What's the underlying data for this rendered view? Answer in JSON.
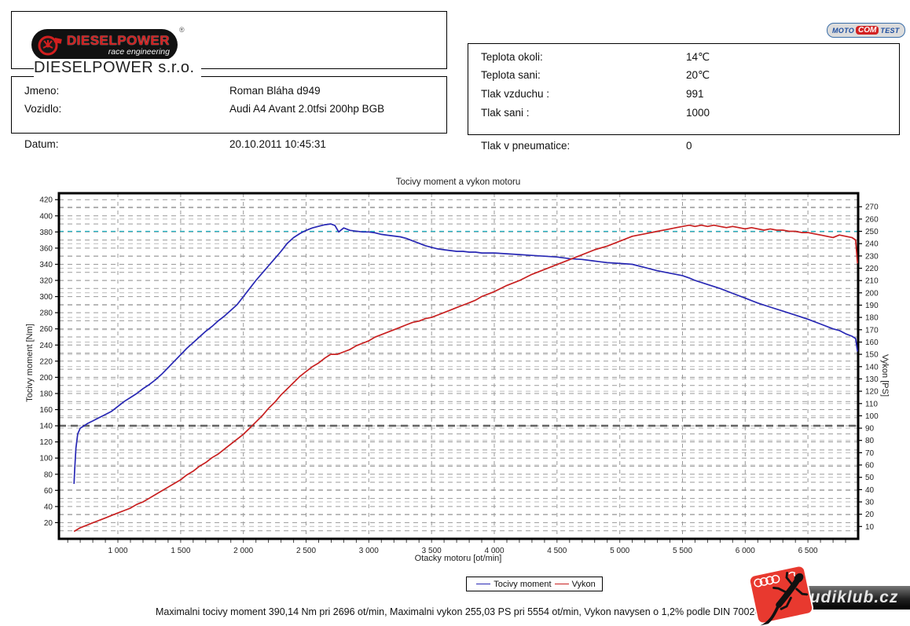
{
  "header": {
    "logo": {
      "brand": "DIESELPOWER",
      "sub": "race engineering",
      "registered": "®"
    },
    "company": "DIESELPOWER s.r.o.",
    "motocomtest": {
      "moto": "MOTO",
      "com": "COM",
      "test": "TEST"
    },
    "info_left": [
      {
        "label": "Jmeno:",
        "value": "Roman Bláha d949"
      },
      {
        "label": "Vozidlo:",
        "value": "Audi A4 Avant 2.0tfsi 200hp BGB"
      },
      {
        "label": "Datum:",
        "value": "20.10.2011 10:45:31"
      }
    ],
    "info_right": [
      {
        "label": "Teplota okoli:",
        "value": "14℃"
      },
      {
        "label": "Teplota sani:",
        "value": "20℃"
      },
      {
        "label": "Tlak vzduchu :",
        "value": "991"
      },
      {
        "label": "Tlak sani :",
        "value": "1000"
      },
      {
        "label": "Tlak v pneumatice:",
        "value": "0"
      }
    ]
  },
  "chart_data": {
    "type": "line",
    "title": "Tocivy moment a vykon motoru",
    "xlabel": "Otacky motoru [ot/min]",
    "ylabel_left": "Tocivy moment [Nm]",
    "ylabel_right": "Vykon [PS]",
    "xlim": [
      530,
      6900
    ],
    "ylim_left": [
      0,
      428
    ],
    "ylim_right": [
      0,
      281
    ],
    "x_ticks": [
      1000,
      1500,
      2000,
      2500,
      3000,
      3500,
      4000,
      4500,
      5000,
      5500,
      6000,
      6500
    ],
    "x_tick_labels": [
      "1 000",
      "1 500",
      "2 000",
      "2 500",
      "3 000",
      "3 500",
      "4 000",
      "4 500",
      "5 000",
      "5 500",
      "6 000",
      "6 500"
    ],
    "x_minor_step": 100,
    "y_left_ticks_step": 20,
    "y_left_grid_step": 10,
    "y_right_ticks_step": 10,
    "grid": true,
    "legend_position": "bottom-center",
    "highlight_lines": [
      {
        "axis": "left",
        "value": 140,
        "color": "#666666",
        "style": "bold-dashed"
      },
      {
        "axis": "right",
        "value": 250,
        "color": "#25b8c8",
        "style": "dashed"
      }
    ],
    "maxima": {
      "torque": "390,14 Nm pri 2696 ot/min",
      "power": "255,03 PS pri 5554 ot/min"
    },
    "series": [
      {
        "name": "Tocivy moment",
        "axis": "left",
        "unit": "Nm",
        "color": "#2828b4",
        "points": [
          [
            650,
            68
          ],
          [
            655,
            85
          ],
          [
            665,
            112
          ],
          [
            680,
            130
          ],
          [
            700,
            137
          ],
          [
            730,
            140
          ],
          [
            760,
            143
          ],
          [
            800,
            146
          ],
          [
            850,
            150
          ],
          [
            900,
            154
          ],
          [
            950,
            158
          ],
          [
            1000,
            164
          ],
          [
            1050,
            170
          ],
          [
            1100,
            175
          ],
          [
            1150,
            180
          ],
          [
            1200,
            186
          ],
          [
            1250,
            191
          ],
          [
            1300,
            197
          ],
          [
            1350,
            204
          ],
          [
            1400,
            212
          ],
          [
            1450,
            220
          ],
          [
            1500,
            228
          ],
          [
            1550,
            236
          ],
          [
            1600,
            243
          ],
          [
            1650,
            250
          ],
          [
            1700,
            257
          ],
          [
            1750,
            263
          ],
          [
            1800,
            270
          ],
          [
            1850,
            276
          ],
          [
            1900,
            283
          ],
          [
            1950,
            290
          ],
          [
            2000,
            300
          ],
          [
            2050,
            310
          ],
          [
            2100,
            320
          ],
          [
            2150,
            329
          ],
          [
            2200,
            338
          ],
          [
            2250,
            347
          ],
          [
            2300,
            356
          ],
          [
            2350,
            366
          ],
          [
            2400,
            373
          ],
          [
            2450,
            378
          ],
          [
            2500,
            382
          ],
          [
            2550,
            385
          ],
          [
            2600,
            387
          ],
          [
            2650,
            389
          ],
          [
            2696,
            390
          ],
          [
            2730,
            388
          ],
          [
            2760,
            380
          ],
          [
            2800,
            385
          ],
          [
            2850,
            382
          ],
          [
            2900,
            381
          ],
          [
            2950,
            380
          ],
          [
            3000,
            380
          ],
          [
            3050,
            379
          ],
          [
            3100,
            377
          ],
          [
            3150,
            376
          ],
          [
            3200,
            375
          ],
          [
            3250,
            374
          ],
          [
            3300,
            372
          ],
          [
            3350,
            369
          ],
          [
            3400,
            366
          ],
          [
            3450,
            363
          ],
          [
            3500,
            361
          ],
          [
            3550,
            359
          ],
          [
            3600,
            358
          ],
          [
            3650,
            357
          ],
          [
            3700,
            356
          ],
          [
            3750,
            356
          ],
          [
            3800,
            355
          ],
          [
            3850,
            355
          ],
          [
            3900,
            354
          ],
          [
            3950,
            354
          ],
          [
            4000,
            354
          ],
          [
            4100,
            353
          ],
          [
            4200,
            352
          ],
          [
            4300,
            351
          ],
          [
            4400,
            350
          ],
          [
            4500,
            349
          ],
          [
            4600,
            347
          ],
          [
            4700,
            346
          ],
          [
            4800,
            344
          ],
          [
            4900,
            342
          ],
          [
            5000,
            341
          ],
          [
            5100,
            340
          ],
          [
            5200,
            336
          ],
          [
            5300,
            332
          ],
          [
            5400,
            329
          ],
          [
            5500,
            326
          ],
          [
            5554,
            323
          ],
          [
            5600,
            320
          ],
          [
            5700,
            315
          ],
          [
            5800,
            310
          ],
          [
            5900,
            304
          ],
          [
            6000,
            298
          ],
          [
            6100,
            292
          ],
          [
            6200,
            287
          ],
          [
            6300,
            282
          ],
          [
            6400,
            277
          ],
          [
            6500,
            272
          ],
          [
            6600,
            266
          ],
          [
            6700,
            260
          ],
          [
            6750,
            258
          ],
          [
            6800,
            254
          ],
          [
            6850,
            251
          ],
          [
            6880,
            248
          ],
          [
            6895,
            232
          ]
        ]
      },
      {
        "name": "Vykon",
        "axis": "right",
        "unit": "PS",
        "color": "#c82020",
        "points": [
          [
            650,
            6
          ],
          [
            700,
            9
          ],
          [
            750,
            11
          ],
          [
            800,
            13
          ],
          [
            850,
            15
          ],
          [
            900,
            17
          ],
          [
            950,
            19
          ],
          [
            1000,
            21
          ],
          [
            1050,
            23
          ],
          [
            1100,
            25
          ],
          [
            1150,
            28
          ],
          [
            1200,
            30
          ],
          [
            1250,
            33
          ],
          [
            1300,
            36
          ],
          [
            1350,
            39
          ],
          [
            1400,
            42
          ],
          [
            1450,
            45
          ],
          [
            1500,
            48
          ],
          [
            1550,
            52
          ],
          [
            1600,
            55
          ],
          [
            1650,
            59
          ],
          [
            1700,
            62
          ],
          [
            1750,
            66
          ],
          [
            1800,
            69
          ],
          [
            1850,
            73
          ],
          [
            1900,
            77
          ],
          [
            1950,
            81
          ],
          [
            2000,
            85
          ],
          [
            2050,
            90
          ],
          [
            2100,
            95
          ],
          [
            2150,
            100
          ],
          [
            2200,
            106
          ],
          [
            2250,
            111
          ],
          [
            2300,
            117
          ],
          [
            2350,
            122
          ],
          [
            2400,
            127
          ],
          [
            2450,
            132
          ],
          [
            2500,
            136
          ],
          [
            2550,
            140
          ],
          [
            2600,
            143
          ],
          [
            2650,
            147
          ],
          [
            2696,
            150
          ],
          [
            2750,
            150
          ],
          [
            2800,
            152
          ],
          [
            2850,
            154
          ],
          [
            2900,
            157
          ],
          [
            2950,
            159
          ],
          [
            3000,
            161
          ],
          [
            3050,
            164
          ],
          [
            3100,
            166
          ],
          [
            3150,
            168
          ],
          [
            3200,
            170
          ],
          [
            3250,
            172
          ],
          [
            3300,
            174
          ],
          [
            3350,
            176
          ],
          [
            3400,
            177
          ],
          [
            3450,
            179
          ],
          [
            3500,
            180
          ],
          [
            3550,
            182
          ],
          [
            3600,
            184
          ],
          [
            3650,
            186
          ],
          [
            3700,
            188
          ],
          [
            3750,
            190
          ],
          [
            3800,
            192
          ],
          [
            3850,
            194
          ],
          [
            3900,
            197
          ],
          [
            3950,
            199
          ],
          [
            4000,
            201
          ],
          [
            4100,
            206
          ],
          [
            4200,
            210
          ],
          [
            4300,
            215
          ],
          [
            4400,
            219
          ],
          [
            4500,
            223
          ],
          [
            4600,
            227
          ],
          [
            4700,
            231
          ],
          [
            4800,
            235
          ],
          [
            4900,
            238
          ],
          [
            5000,
            242
          ],
          [
            5100,
            246
          ],
          [
            5200,
            248
          ],
          [
            5300,
            250
          ],
          [
            5400,
            252
          ],
          [
            5450,
            253
          ],
          [
            5500,
            254
          ],
          [
            5554,
            255
          ],
          [
            5600,
            254
          ],
          [
            5650,
            255
          ],
          [
            5700,
            254
          ],
          [
            5750,
            255
          ],
          [
            5800,
            254
          ],
          [
            5850,
            253
          ],
          [
            5900,
            254
          ],
          [
            5950,
            253
          ],
          [
            6000,
            252
          ],
          [
            6050,
            253
          ],
          [
            6100,
            252
          ],
          [
            6150,
            251
          ],
          [
            6200,
            252
          ],
          [
            6250,
            251
          ],
          [
            6300,
            251
          ],
          [
            6350,
            250
          ],
          [
            6400,
            250
          ],
          [
            6450,
            249
          ],
          [
            6500,
            249
          ],
          [
            6550,
            248
          ],
          [
            6600,
            247
          ],
          [
            6650,
            246
          ],
          [
            6700,
            245
          ],
          [
            6750,
            247
          ],
          [
            6800,
            246
          ],
          [
            6850,
            245
          ],
          [
            6880,
            243
          ],
          [
            6895,
            224
          ]
        ]
      }
    ]
  },
  "footer": {
    "summary": "Maximalni tocivy moment 390,14 Nm pri 2696 ot/min,  Maximalni vykon 255,03 PS pri 5554 ot/min,  Vykon navysen o 1,2% podle DIN 70020",
    "audiklub_text": "audiklub.cz"
  }
}
